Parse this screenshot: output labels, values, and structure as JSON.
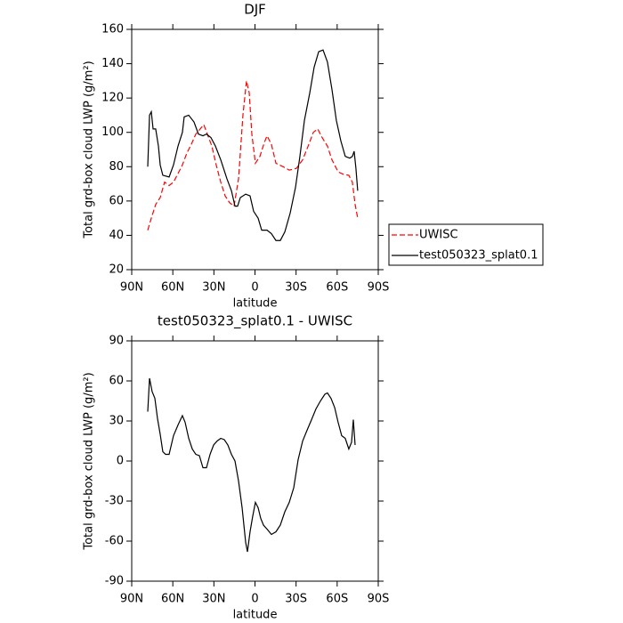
{
  "chart_data": [
    {
      "type": "line",
      "title": "DJF",
      "xlabel": "latitude",
      "ylabel": "Total grd-box cloud LWP (g/m²)",
      "xlim": [
        90,
        -90
      ],
      "xticks": [
        {
          "value": 90,
          "label": "90N"
        },
        {
          "value": 60,
          "label": "60N"
        },
        {
          "value": 30,
          "label": "30N"
        },
        0,
        {
          "value": -30,
          "label": "30S"
        },
        {
          "value": -60,
          "label": "60S"
        },
        {
          "value": -90,
          "label": "90S"
        }
      ],
      "ylim": [
        20,
        160
      ],
      "yticks": [
        20,
        40,
        60,
        80,
        100,
        120,
        140,
        160
      ],
      "legend": "right",
      "series": [
        {
          "name": "UWISC",
          "color": "#ff0000",
          "line_style": "dashed",
          "x": [
            78.3,
            75.7,
            72.5,
            69.2,
            66.0,
            62.7,
            59.5,
            56.2,
            53.0,
            49.7,
            46.5,
            43.2,
            40.0,
            37.4,
            34.8,
            31.5,
            28.3,
            25.0,
            21.8,
            18.5,
            15.3,
            12.0,
            8.8,
            6.2,
            4.2,
            2.3,
            -0.3,
            -3.6,
            -6.8,
            -8.8,
            -12.0,
            -15.3,
            -20.5,
            -25.0,
            -30.2,
            -34.8,
            -39.3,
            -42.6,
            -45.8,
            -49.0,
            -52.9,
            -56.2,
            -60.7,
            -64.6,
            -68.5,
            -71.1,
            -73.1,
            -75.0
          ],
          "values": [
            43,
            50,
            58,
            62,
            71,
            69,
            71,
            76,
            81,
            88,
            93,
            99,
            102,
            104.5,
            99,
            92,
            81,
            71,
            63,
            59,
            57,
            73,
            110,
            130,
            123,
            99,
            82,
            86,
            94,
            98,
            93,
            82,
            80,
            78,
            79,
            84,
            93,
            100,
            102,
            97,
            92,
            84,
            77,
            75.5,
            75,
            71,
            58,
            50
          ]
        },
        {
          "name": "test050323_splat0.1",
          "color": "#000000",
          "line_style": "solid",
          "x": [
            78.3,
            77.0,
            75.7,
            74.4,
            72.5,
            70.5,
            69.2,
            67.3,
            62.7,
            59.5,
            56.2,
            53.0,
            51.7,
            48.4,
            44.5,
            41.3,
            38.0,
            35.4,
            32.2,
            28.9,
            25.0,
            20.5,
            17.2,
            14.6,
            12.7,
            10.7,
            6.8,
            3.6,
            1.0,
            -2.3,
            -4.9,
            -8.8,
            -12.0,
            -15.3,
            -18.5,
            -21.8,
            -25.7,
            -29.6,
            -32.8,
            -36.1,
            -40.0,
            -43.2,
            -46.5,
            -49.7,
            -52.9,
            -56.2,
            -59.4,
            -62.7,
            -65.9,
            -69.2,
            -71.1,
            -72.4,
            -73.7,
            -75.0
          ],
          "values": [
            80,
            110,
            112,
            102,
            102,
            92,
            81,
            75,
            74,
            81,
            92,
            100,
            109,
            110,
            106,
            99,
            98,
            99,
            97,
            92,
            84,
            73,
            66,
            57,
            57,
            62,
            64,
            63,
            54,
            50,
            43,
            43,
            41,
            37,
            37,
            42,
            53,
            68,
            86,
            107,
            123,
            138,
            147,
            148,
            141,
            125,
            107,
            95,
            86,
            85,
            86,
            89,
            79,
            66
          ]
        }
      ]
    },
    {
      "type": "line",
      "title": "test050323_splat0.1 - UWISC",
      "xlabel": "latitude",
      "ylabel": "Total grd-box cloud LWP (g/m²)",
      "xlim": [
        90,
        -90
      ],
      "xticks": [
        {
          "value": 90,
          "label": "90N"
        },
        {
          "value": 60,
          "label": "60N"
        },
        {
          "value": 30,
          "label": "30N"
        },
        0,
        {
          "value": -30,
          "label": "30S"
        },
        {
          "value": -60,
          "label": "60S"
        },
        {
          "value": -90,
          "label": "90S"
        }
      ],
      "ylim": [
        -90,
        90
      ],
      "yticks": [
        -90,
        -60,
        -30,
        0,
        30,
        60,
        90
      ],
      "series": [
        {
          "color": "#000000",
          "line_style": "solid",
          "x": [
            78.3,
            77.0,
            75.1,
            73.1,
            71.2,
            69.2,
            67.3,
            65.3,
            62.7,
            59.5,
            56.2,
            53.0,
            51.0,
            48.4,
            45.8,
            43.2,
            40.6,
            38.0,
            35.4,
            32.8,
            30.2,
            27.6,
            25.0,
            22.4,
            19.8,
            17.2,
            14.6,
            12.0,
            9.4,
            6.8,
            5.5,
            3.6,
            1.6,
            -0.3,
            -2.3,
            -4.2,
            -6.2,
            -8.8,
            -12.0,
            -15.3,
            -18.5,
            -21.8,
            -25.0,
            -28.3,
            -31.5,
            -34.8,
            -38.0,
            -41.3,
            -44.5,
            -47.8,
            -51.0,
            -52.9,
            -55.5,
            -58.2,
            -60.7,
            -63.3,
            -65.9,
            -68.5,
            -70.5,
            -71.8,
            -73.1
          ],
          "values": [
            37,
            62,
            52,
            47,
            32,
            20,
            7,
            5,
            5,
            19,
            27,
            34,
            29,
            17,
            9,
            5,
            4,
            -5,
            -5,
            5,
            12,
            15,
            17,
            16,
            12,
            5,
            0,
            -15,
            -35,
            -61,
            -68,
            -53,
            -41,
            -31,
            -35,
            -43,
            -48,
            -51,
            -55,
            -53,
            -48,
            -38,
            -31,
            -20,
            1,
            15,
            23,
            31,
            39,
            45,
            50,
            51,
            47,
            40,
            29,
            19,
            17,
            9,
            14,
            31,
            12
          ]
        }
      ]
    }
  ]
}
